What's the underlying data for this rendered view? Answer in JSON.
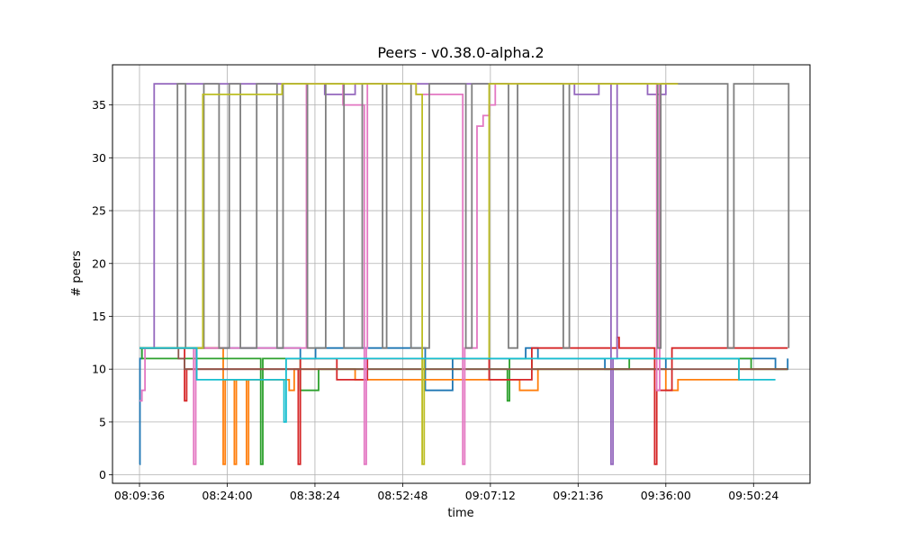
{
  "chart_data": {
    "type": "line",
    "title": "Peers  -  v0.38.0-alpha.2",
    "xlabel": "time",
    "ylabel": "# peers",
    "x_ticks": [
      "08:09:36",
      "08:24:00",
      "08:38:24",
      "08:52:48",
      "09:07:12",
      "09:21:36",
      "09:36:00",
      "09:50:24"
    ],
    "x_range": [
      "08:05:10",
      "09:59:40"
    ],
    "y_ticks": [
      0,
      5,
      10,
      15,
      20,
      25,
      30,
      35
    ],
    "ylim": [
      -0.8,
      38.8
    ],
    "grid": true,
    "series": [
      {
        "color": "#1f77b4",
        "points": [
          [
            "08:09:36",
            1
          ],
          [
            "08:09:40",
            11
          ],
          [
            "08:10:00",
            12
          ],
          [
            "08:36:00",
            11
          ],
          [
            "08:38:30",
            12
          ],
          [
            "08:56:30",
            8
          ],
          [
            "09:01:00",
            11
          ],
          [
            "09:13:00",
            12
          ],
          [
            "09:15:00",
            11
          ],
          [
            "09:26:00",
            10
          ],
          [
            "09:36:00",
            11
          ],
          [
            "09:54:00",
            10
          ],
          [
            "09:56:00",
            11
          ]
        ]
      },
      {
        "color": "#ff7f0e",
        "points": [
          [
            "08:09:36",
            12
          ],
          [
            "08:23:20",
            1
          ],
          [
            "08:23:40",
            9
          ],
          [
            "08:25:10",
            1
          ],
          [
            "08:25:30",
            9
          ],
          [
            "08:27:10",
            1
          ],
          [
            "08:27:30",
            9
          ],
          [
            "08:34:10",
            8
          ],
          [
            "08:35:00",
            10
          ],
          [
            "08:45:00",
            9
          ],
          [
            "09:12:00",
            8
          ],
          [
            "09:15:00",
            10
          ],
          [
            "09:36:00",
            8
          ],
          [
            "09:38:00",
            9
          ],
          [
            "09:48:00",
            10
          ],
          [
            "09:56:00",
            10
          ]
        ]
      },
      {
        "color": "#2ca02c",
        "points": [
          [
            "08:09:36",
            12
          ],
          [
            "08:10:00",
            11
          ],
          [
            "08:29:30",
            1
          ],
          [
            "08:29:50",
            11
          ],
          [
            "08:36:00",
            8
          ],
          [
            "08:39:00",
            10
          ],
          [
            "09:10:00",
            7
          ],
          [
            "09:10:20",
            11
          ],
          [
            "09:14:00",
            10
          ],
          [
            "09:30:00",
            11
          ],
          [
            "09:50:00",
            10
          ],
          [
            "09:56:00",
            10
          ]
        ]
      },
      {
        "color": "#d62728",
        "points": [
          [
            "08:09:36",
            12
          ],
          [
            "08:17:00",
            7
          ],
          [
            "08:17:20",
            10
          ],
          [
            "08:35:40",
            1
          ],
          [
            "08:36:00",
            11
          ],
          [
            "08:42:00",
            9
          ],
          [
            "08:47:00",
            11
          ],
          [
            "09:07:00",
            9
          ],
          [
            "09:14:00",
            12
          ],
          [
            "09:28:00",
            13
          ],
          [
            "09:28:20",
            12
          ],
          [
            "09:34:10",
            1
          ],
          [
            "09:34:30",
            8
          ],
          [
            "09:37:00",
            12
          ],
          [
            "09:56:00",
            12
          ]
        ]
      },
      {
        "color": "#9467bd",
        "points": [
          [
            "08:09:36",
            12
          ],
          [
            "08:12:00",
            37
          ],
          [
            "08:40:00",
            36
          ],
          [
            "08:45:00",
            37
          ],
          [
            "09:21:00",
            36
          ],
          [
            "09:25:00",
            37
          ],
          [
            "09:27:00",
            1
          ],
          [
            "09:27:20",
            11
          ],
          [
            "09:28:00",
            37
          ],
          [
            "09:33:00",
            36
          ],
          [
            "09:36:00",
            37
          ],
          [
            "09:38:00",
            37
          ]
        ]
      },
      {
        "color": "#8c564b",
        "points": [
          [
            "08:09:36",
            12
          ],
          [
            "08:16:00",
            11
          ],
          [
            "08:17:00",
            10
          ],
          [
            "08:45:00",
            10
          ],
          [
            "09:16:00",
            10
          ],
          [
            "09:20:00",
            10
          ],
          [
            "09:56:00",
            10
          ]
        ]
      },
      {
        "color": "#e377c2",
        "points": [
          [
            "08:09:36",
            7
          ],
          [
            "08:10:00",
            8
          ],
          [
            "08:10:30",
            12
          ],
          [
            "08:18:30",
            1
          ],
          [
            "08:18:50",
            12
          ],
          [
            "08:37:00",
            37
          ],
          [
            "08:43:00",
            35
          ],
          [
            "08:46:30",
            1
          ],
          [
            "08:46:50",
            12
          ],
          [
            "08:47:00",
            37
          ],
          [
            "08:55:00",
            36
          ],
          [
            "09:02:40",
            1
          ],
          [
            "09:03:00",
            12
          ],
          [
            "09:05:00",
            33
          ],
          [
            "09:06:00",
            34
          ],
          [
            "09:07:00",
            35
          ],
          [
            "09:08:00",
            37
          ],
          [
            "09:12:00",
            37
          ],
          [
            "09:34:30",
            8
          ],
          [
            "09:35:00",
            37
          ],
          [
            "09:38:00",
            37
          ]
        ]
      },
      {
        "color": "#7f7f7f",
        "points": [
          [
            "08:09:36",
            12
          ],
          [
            "08:15:40",
            12
          ],
          [
            "08:15:50",
            37
          ],
          [
            "08:17:00",
            37
          ],
          [
            "08:17:10",
            12
          ],
          [
            "08:20:00",
            12
          ],
          [
            "08:20:10",
            37
          ],
          [
            "08:22:30",
            37
          ],
          [
            "08:22:40",
            12
          ],
          [
            "08:24:10",
            12
          ],
          [
            "08:24:20",
            37
          ],
          [
            "08:26:00",
            37
          ],
          [
            "08:26:10",
            12
          ],
          [
            "08:28:40",
            12
          ],
          [
            "08:28:50",
            37
          ],
          [
            "08:32:00",
            37
          ],
          [
            "08:32:10",
            12
          ],
          [
            "08:33:00",
            12
          ],
          [
            "08:33:10",
            37
          ],
          [
            "08:37:00",
            37
          ],
          [
            "08:37:10",
            12
          ],
          [
            "08:40:00",
            12
          ],
          [
            "08:40:10",
            37
          ],
          [
            "08:43:00",
            37
          ],
          [
            "08:43:10",
            12
          ],
          [
            "08:46:00",
            12
          ],
          [
            "08:46:10",
            37
          ],
          [
            "08:49:20",
            37
          ],
          [
            "08:49:30",
            12
          ],
          [
            "08:50:00",
            12
          ],
          [
            "08:50:10",
            37
          ],
          [
            "08:54:00",
            37
          ],
          [
            "08:54:10",
            12
          ],
          [
            "08:57:00",
            12
          ],
          [
            "08:57:10",
            37
          ],
          [
            "09:03:00",
            37
          ],
          [
            "09:03:10",
            12
          ],
          [
            "09:04:00",
            12
          ],
          [
            "09:04:10",
            37
          ],
          [
            "09:10:00",
            37
          ],
          [
            "09:10:10",
            12
          ],
          [
            "09:11:30",
            12
          ],
          [
            "09:11:40",
            37
          ],
          [
            "09:19:00",
            37
          ],
          [
            "09:19:10",
            12
          ],
          [
            "09:20:00",
            12
          ],
          [
            "09:20:10",
            37
          ],
          [
            "09:34:30",
            37
          ],
          [
            "09:34:40",
            12
          ],
          [
            "09:35:00",
            12
          ],
          [
            "09:35:10",
            37
          ],
          [
            "09:46:00",
            37
          ],
          [
            "09:46:10",
            12
          ],
          [
            "09:47:00",
            12
          ],
          [
            "09:47:10",
            37
          ],
          [
            "09:56:00",
            37
          ],
          [
            "09:56:10",
            12
          ]
        ]
      },
      {
        "color": "#bcbd22",
        "points": [
          [
            "08:09:36",
            12
          ],
          [
            "08:20:00",
            36
          ],
          [
            "08:33:00",
            37
          ],
          [
            "08:55:00",
            36
          ],
          [
            "08:56:00",
            1
          ],
          [
            "08:56:20",
            11
          ],
          [
            "09:07:00",
            37
          ],
          [
            "09:38:00",
            37
          ]
        ]
      },
      {
        "color": "#17becf",
        "points": [
          [
            "08:09:36",
            12
          ],
          [
            "08:19:00",
            9
          ],
          [
            "08:21:00",
            9
          ],
          [
            "08:33:20",
            5
          ],
          [
            "08:33:40",
            11
          ],
          [
            "08:40:00",
            11
          ],
          [
            "09:16:00",
            11
          ],
          [
            "09:48:00",
            9
          ],
          [
            "09:54:00",
            9
          ]
        ]
      }
    ]
  }
}
